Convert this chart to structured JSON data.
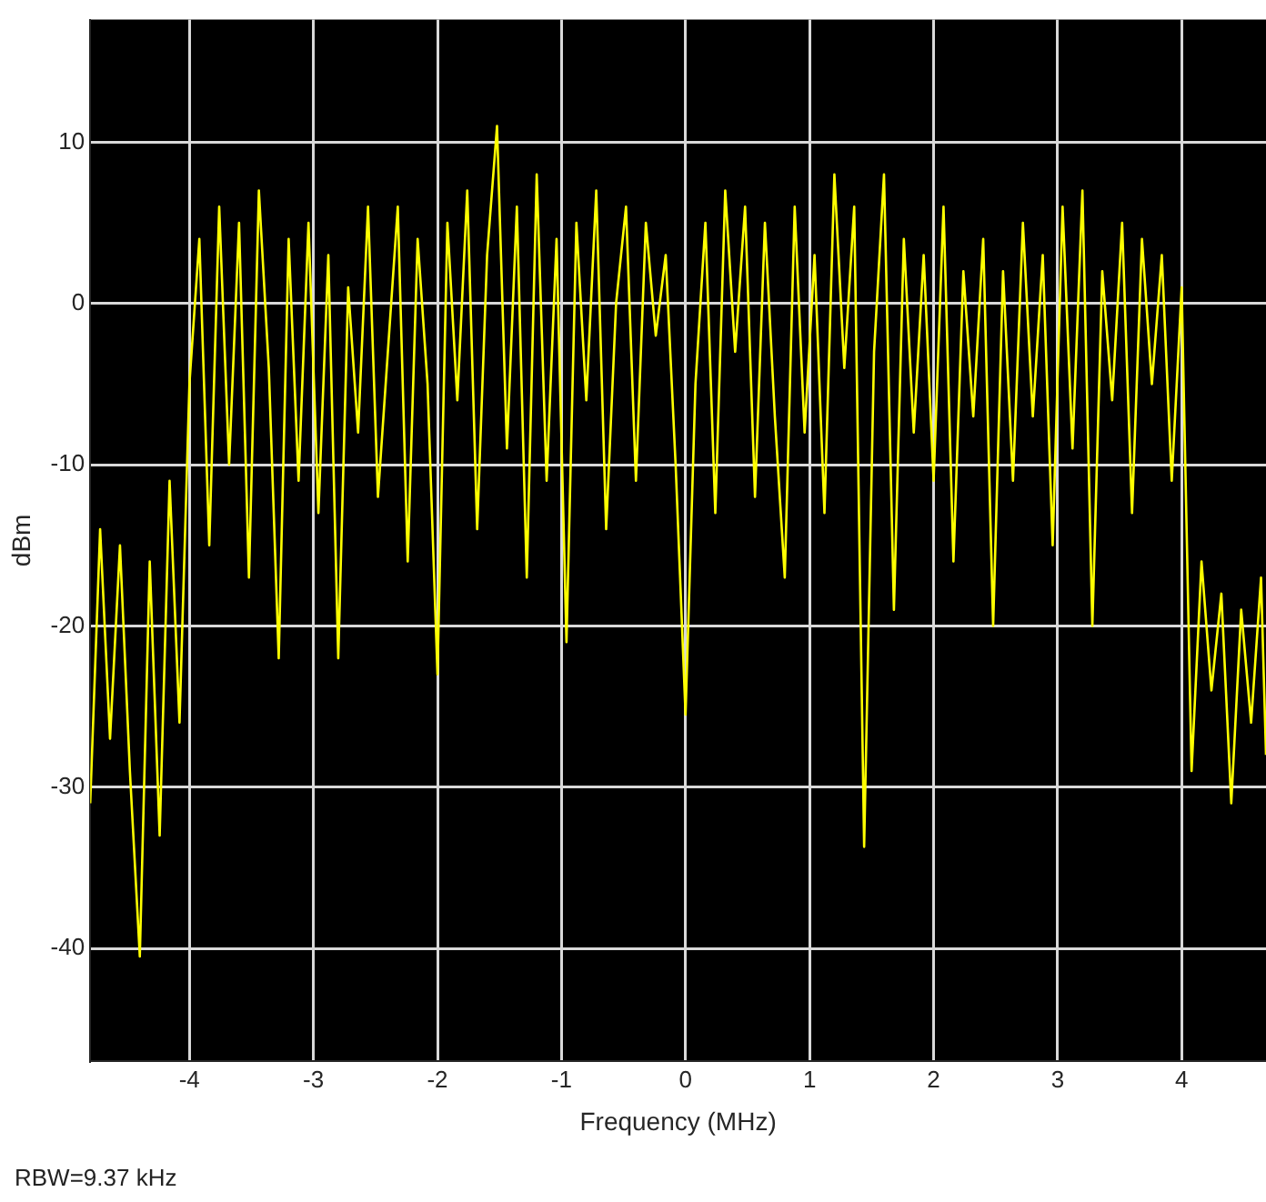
{
  "chart_data": {
    "type": "line",
    "xlabel": "Frequency (MHz)",
    "ylabel": "dBm",
    "annotations": [
      "RBW=9.37 kHz"
    ],
    "x": [
      -4.8,
      -4.72,
      -4.64,
      -4.56,
      -4.48,
      -4.4,
      -4.32,
      -4.24,
      -4.16,
      -4.08,
      -4.0,
      -3.92,
      -3.84,
      -3.76,
      -3.68,
      -3.6,
      -3.52,
      -3.44,
      -3.36,
      -3.28,
      -3.2,
      -3.12,
      -3.04,
      -2.96,
      -2.88,
      -2.8,
      -2.72,
      -2.64,
      -2.56,
      -2.48,
      -2.4,
      -2.32,
      -2.24,
      -2.16,
      -2.08,
      -2.0,
      -1.92,
      -1.84,
      -1.76,
      -1.68,
      -1.6,
      -1.52,
      -1.44,
      -1.36,
      -1.28,
      -1.2,
      -1.12,
      -1.04,
      -0.96,
      -0.88,
      -0.8,
      -0.72,
      -0.64,
      -0.56,
      -0.48,
      -0.4,
      -0.32,
      -0.24,
      -0.16,
      -0.08,
      0.0,
      0.08,
      0.16,
      0.24,
      0.32,
      0.4,
      0.48,
      0.56,
      0.64,
      0.72,
      0.8,
      0.88,
      0.96,
      1.04,
      1.12,
      1.2,
      1.28,
      1.36,
      1.44,
      1.52,
      1.6,
      1.68,
      1.76,
      1.84,
      1.92,
      2.0,
      2.08,
      2.16,
      2.24,
      2.32,
      2.4,
      2.48,
      2.56,
      2.64,
      2.72,
      2.8,
      2.88,
      2.96,
      3.04,
      3.12,
      3.2,
      3.28,
      3.36,
      3.44,
      3.52,
      3.6,
      3.68,
      3.76,
      3.84,
      3.92,
      4.0,
      4.08,
      4.16,
      4.24,
      4.32,
      4.4,
      4.48,
      4.56,
      4.64,
      4.68
    ],
    "series": [
      {
        "color": "#ffff00",
        "values": [
          -31,
          -14,
          -27,
          -15,
          -29,
          -40.5,
          -16,
          -33,
          -11,
          -26,
          -5,
          4,
          -15,
          6,
          -10,
          5,
          -17,
          7,
          -4,
          -22,
          4,
          -11,
          5,
          -13,
          3,
          -22,
          1,
          -8,
          6,
          -12,
          -3,
          6,
          -16,
          4,
          -5,
          -23,
          5,
          -6,
          7,
          -14,
          3,
          11,
          -9,
          6,
          -17,
          8,
          -11,
          4,
          -21,
          5,
          -6,
          7,
          -14,
          0,
          6,
          -11,
          5,
          -2,
          3,
          -10,
          -25.5,
          -5,
          5,
          -13,
          7,
          -3,
          6,
          -12,
          5,
          -7,
          -17,
          6,
          -8,
          3,
          -13,
          8,
          -4,
          6,
          -33.7,
          -3,
          8,
          -19,
          4,
          -8,
          3,
          -11,
          6,
          -16,
          2,
          -7,
          4,
          -20,
          2,
          -11,
          5,
          -7,
          3,
          -15,
          6,
          -9,
          7,
          -20,
          2,
          -6,
          5,
          -13,
          4,
          -5,
          3,
          -11,
          1,
          -29,
          -16,
          -24,
          -18,
          -31,
          -19,
          -26,
          -17,
          -28
        ]
      }
    ],
    "xlim": [
      -4.8,
      4.68
    ],
    "ylim": [
      -47,
      17.6
    ],
    "xticks": [
      -4,
      -3,
      -2,
      -1,
      0,
      1,
      2,
      3,
      4
    ],
    "yticks": [
      -40,
      -30,
      -20,
      -10,
      0,
      10
    ],
    "grid": true,
    "legend": false,
    "marker": "none",
    "line_style": "solid"
  }
}
